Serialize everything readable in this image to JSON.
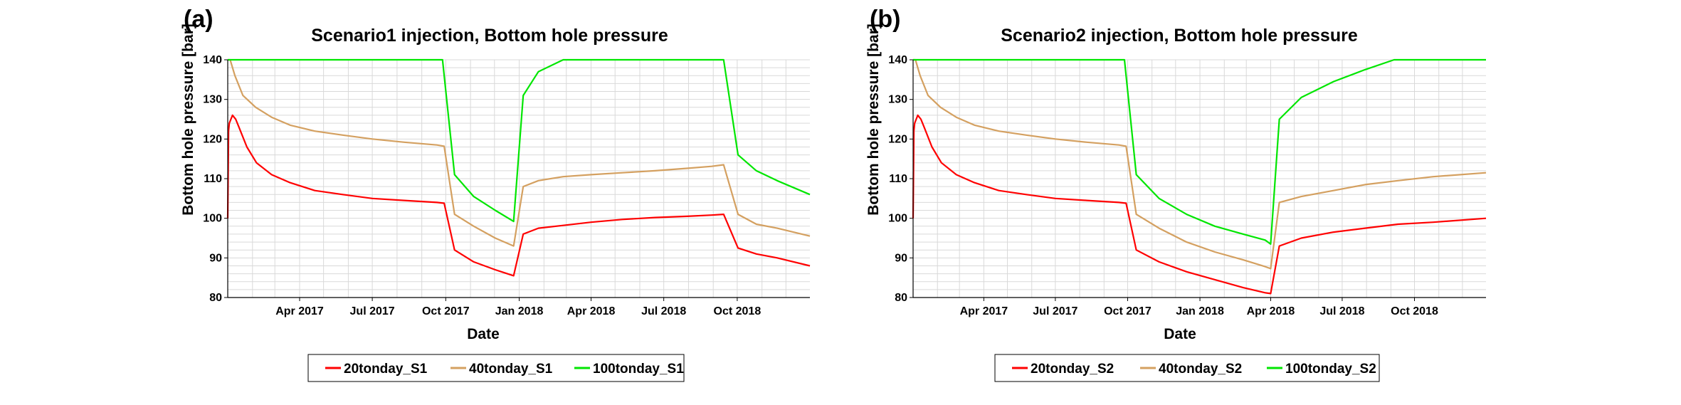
{
  "colors": {
    "series_1": "#ff0000",
    "series_2": "#d4a060",
    "series_3": "#00e600",
    "grid": "#d9d9d9"
  },
  "chart_data": [
    {
      "type": "line",
      "panel_label": "(a)",
      "title": "Scenario1 injection, Bottom hole pressure",
      "xlabel": "Date",
      "ylabel": "Bottom hole pressure [bar]",
      "ylim": [
        80,
        140
      ],
      "yticks": [
        "80",
        "90",
        "100",
        "110",
        "120",
        "130",
        "140"
      ],
      "xlim": [
        "2017-01-01",
        "2018-12-31"
      ],
      "xticks": [
        {
          "date": "2017-04-01",
          "label": "Apr 2017"
        },
        {
          "date": "2017-07-01",
          "label": "Jul 2017"
        },
        {
          "date": "2017-10-01",
          "label": "Oct 2017"
        },
        {
          "date": "2018-01-01",
          "label": "Jan 2018"
        },
        {
          "date": "2018-04-01",
          "label": "Apr 2018"
        },
        {
          "date": "2018-07-01",
          "label": "Jul 2018"
        },
        {
          "date": "2018-10-01",
          "label": "Oct 2018"
        }
      ],
      "grid": true,
      "legend_position": "bottom",
      "series": [
        {
          "name": "20tonday_S1",
          "x": [
            "2017-01-01",
            "2017-01-02",
            "2017-01-03",
            "2017-01-07",
            "2017-01-11",
            "2017-01-15",
            "2017-01-25",
            "2017-02-06",
            "2017-02-25",
            "2017-03-20",
            "2017-04-20",
            "2017-05-25",
            "2017-07-01",
            "2017-08-10",
            "2017-09-20",
            "2017-09-29",
            "2017-10-12",
            "2017-11-05",
            "2017-12-02",
            "2017-12-25",
            "2018-01-06",
            "2018-01-25",
            "2018-02-25",
            "2018-04-01",
            "2018-05-10",
            "2018-06-20",
            "2018-07-30",
            "2018-08-30",
            "2018-09-14",
            "2018-10-02",
            "2018-10-25",
            "2018-11-20",
            "2018-12-31"
          ],
          "values": [
            100,
            122,
            124,
            126,
            125,
            123,
            118,
            114,
            111,
            109,
            107,
            106,
            105,
            104.5,
            104,
            103.8,
            92,
            89,
            87,
            85.5,
            96,
            97.5,
            98.2,
            99,
            99.7,
            100.2,
            100.5,
            100.8,
            101,
            92.5,
            91,
            90,
            88
          ]
        },
        {
          "name": "40tonday_S1",
          "x": [
            "2017-01-01",
            "2017-01-04",
            "2017-01-10",
            "2017-01-20",
            "2017-02-05",
            "2017-02-25",
            "2017-03-20",
            "2017-04-20",
            "2017-05-25",
            "2017-07-01",
            "2017-08-10",
            "2017-09-20",
            "2017-09-29",
            "2017-10-12",
            "2017-11-05",
            "2017-12-02",
            "2017-12-25",
            "2018-01-06",
            "2018-01-25",
            "2018-02-25",
            "2018-04-01",
            "2018-05-10",
            "2018-06-20",
            "2018-07-30",
            "2018-08-30",
            "2018-09-14",
            "2018-10-02",
            "2018-10-25",
            "2018-11-20",
            "2018-12-31"
          ],
          "values": [
            140,
            140,
            136,
            131,
            128,
            125.5,
            123.5,
            122,
            121,
            120,
            119.2,
            118.5,
            118.2,
            101,
            98,
            95,
            93,
            108,
            109.5,
            110.5,
            111,
            111.5,
            112,
            112.6,
            113.1,
            113.5,
            101,
            98.5,
            97.5,
            95.5
          ]
        },
        {
          "name": "100tonday_S1",
          "x": [
            "2017-01-01",
            "2017-09-27",
            "2017-10-12",
            "2017-11-05",
            "2017-12-02",
            "2017-12-25",
            "2018-01-06",
            "2018-01-25",
            "2018-02-25",
            "2018-09-14",
            "2018-10-02",
            "2018-10-25",
            "2018-11-20",
            "2018-12-31"
          ],
          "values": [
            140,
            140,
            111,
            105.5,
            102,
            99.2,
            131,
            137,
            140,
            140,
            116,
            112,
            109.5,
            106
          ]
        }
      ]
    },
    {
      "type": "line",
      "panel_label": "(b)",
      "title": "Scenario2 injection, Bottom hole pressure",
      "xlabel": "Date",
      "ylabel": "Bottom hole pressure [bar]",
      "ylim": [
        80,
        140
      ],
      "yticks": [
        "80",
        "90",
        "100",
        "110",
        "120",
        "130",
        "140"
      ],
      "xlim": [
        "2017-01-01",
        "2018-12-31"
      ],
      "xticks": [
        {
          "date": "2017-04-01",
          "label": "Apr 2017"
        },
        {
          "date": "2017-07-01",
          "label": "Jul 2017"
        },
        {
          "date": "2017-10-01",
          "label": "Oct 2017"
        },
        {
          "date": "2018-01-01",
          "label": "Jan 2018"
        },
        {
          "date": "2018-04-01",
          "label": "Apr 2018"
        },
        {
          "date": "2018-07-01",
          "label": "Jul 2018"
        },
        {
          "date": "2018-10-01",
          "label": "Oct 2018"
        }
      ],
      "grid": true,
      "legend_position": "bottom",
      "series": [
        {
          "name": "20tonday_S2",
          "x": [
            "2017-01-01",
            "2017-01-02",
            "2017-01-03",
            "2017-01-07",
            "2017-01-11",
            "2017-01-15",
            "2017-01-25",
            "2017-02-06",
            "2017-02-25",
            "2017-03-20",
            "2017-04-20",
            "2017-05-25",
            "2017-07-01",
            "2017-08-10",
            "2017-09-20",
            "2017-09-29",
            "2017-10-12",
            "2017-11-10",
            "2017-12-15",
            "2018-01-20",
            "2018-02-25",
            "2018-03-25",
            "2018-04-01",
            "2018-04-12",
            "2018-05-10",
            "2018-06-20",
            "2018-07-30",
            "2018-09-10",
            "2018-10-25",
            "2018-12-31"
          ],
          "values": [
            100,
            122,
            124,
            126,
            125,
            123,
            118,
            114,
            111,
            109,
            107,
            106,
            105,
            104.5,
            104,
            103.8,
            92,
            89,
            86.5,
            84.5,
            82.5,
            81.2,
            81,
            93,
            95,
            96.5,
            97.5,
            98.5,
            99,
            100
          ]
        },
        {
          "name": "40tonday_S2",
          "x": [
            "2017-01-01",
            "2017-01-04",
            "2017-01-10",
            "2017-01-20",
            "2017-02-05",
            "2017-02-25",
            "2017-03-20",
            "2017-04-20",
            "2017-05-25",
            "2017-07-01",
            "2017-08-10",
            "2017-09-20",
            "2017-09-29",
            "2017-10-12",
            "2017-11-10",
            "2017-12-15",
            "2018-01-20",
            "2018-02-25",
            "2018-03-25",
            "2018-04-01",
            "2018-04-12",
            "2018-05-10",
            "2018-06-20",
            "2018-07-30",
            "2018-09-10",
            "2018-10-25",
            "2018-12-31"
          ],
          "values": [
            140,
            140,
            136,
            131,
            128,
            125.5,
            123.5,
            122,
            121,
            120,
            119.2,
            118.5,
            118.2,
            101,
            97.5,
            94,
            91.5,
            89.5,
            87.8,
            87.3,
            104,
            105.5,
            107,
            108.5,
            109.5,
            110.5,
            111.5
          ]
        },
        {
          "name": "100tonday_S2",
          "x": [
            "2017-01-01",
            "2017-09-27",
            "2017-10-12",
            "2017-11-10",
            "2017-12-15",
            "2018-01-20",
            "2018-02-25",
            "2018-03-25",
            "2018-04-01",
            "2018-04-12",
            "2018-05-10",
            "2018-06-20",
            "2018-07-30",
            "2018-09-05",
            "2018-12-31"
          ],
          "values": [
            140,
            140,
            111,
            105,
            101,
            98,
            96,
            94.5,
            93.5,
            125,
            130.5,
            134.5,
            137.5,
            140,
            140
          ]
        }
      ]
    }
  ]
}
